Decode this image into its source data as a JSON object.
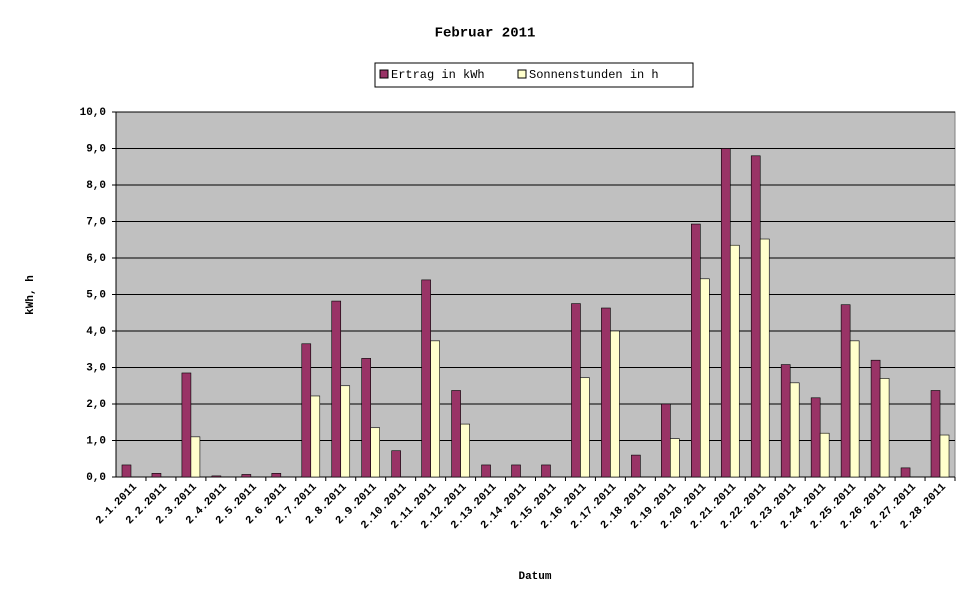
{
  "chart_data": {
    "type": "bar",
    "title": "Februar 2011",
    "x_label": "Datum",
    "y_label": "kWh, h",
    "categories": [
      "2.1.2011",
      "2.2.2011",
      "2.3.2011",
      "2.4.2011",
      "2.5.2011",
      "2.6.2011",
      "2.7.2011",
      "2.8.2011",
      "2.9.2011",
      "2.10.2011",
      "2.11.2011",
      "2.12.2011",
      "2.13.2011",
      "2.14.2011",
      "2.15.2011",
      "2.16.2011",
      "2.17.2011",
      "2.18.2011",
      "2.19.2011",
      "2.20.2011",
      "2.21.2011",
      "2.22.2011",
      "2.23.2011",
      "2.24.2011",
      "2.25.2011",
      "2.26.2011",
      "2.27.2011",
      "2.28.2011"
    ],
    "series": [
      {
        "name": "Ertrag in kWh",
        "color": "#993366",
        "values": [
          0.33,
          0.1,
          2.85,
          0.03,
          0.07,
          0.1,
          3.65,
          4.82,
          3.25,
          0.72,
          5.4,
          2.37,
          0.33,
          0.33,
          0.33,
          4.75,
          4.63,
          0.6,
          2.0,
          6.93,
          9.0,
          8.8,
          3.08,
          2.17,
          4.72,
          3.2,
          0.25,
          2.37
        ]
      },
      {
        "name": "Sonnenstunden in h",
        "color": "#FFFFCC",
        "values": [
          0,
          0,
          1.1,
          0,
          0,
          0,
          2.22,
          2.5,
          1.35,
          0,
          3.73,
          1.45,
          0,
          0,
          0,
          2.72,
          4.0,
          0,
          1.05,
          5.43,
          6.35,
          6.52,
          2.58,
          1.2,
          3.73,
          2.7,
          0,
          1.15
        ]
      }
    ],
    "ylim": [
      0,
      10
    ],
    "yticks": [
      {
        "value": 0,
        "label": "0,0"
      },
      {
        "value": 1,
        "label": "1,0"
      },
      {
        "value": 2,
        "label": "2,0"
      },
      {
        "value": 3,
        "label": "3,0"
      },
      {
        "value": 4,
        "label": "4,0"
      },
      {
        "value": 5,
        "label": "5,0"
      },
      {
        "value": 6,
        "label": "6,0"
      },
      {
        "value": 7,
        "label": "7,0"
      },
      {
        "value": 8,
        "label": "8,0"
      },
      {
        "value": 9,
        "label": "9,0"
      },
      {
        "value": 10,
        "label": "10,0"
      }
    ],
    "grid": true,
    "plot_background": "#C0C0C0"
  }
}
